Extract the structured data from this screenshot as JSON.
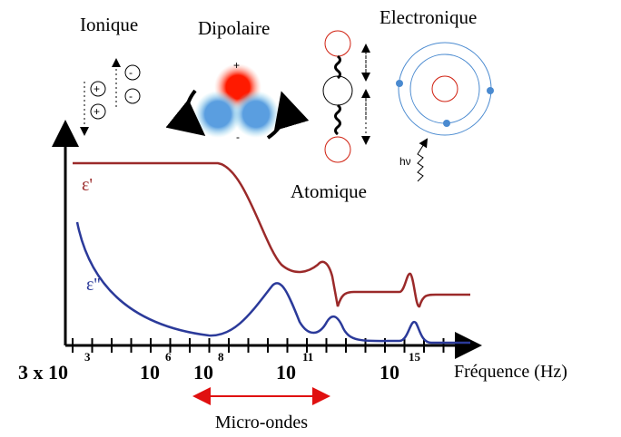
{
  "mechanisms": {
    "ionic": "Ionique",
    "dipolar": "Dipolaire",
    "electronic": "Electronique",
    "atomic": "Atomique"
  },
  "icons": {
    "plus": "+",
    "minus": "-",
    "photon": "hν"
  },
  "curves": {
    "real": "ε'",
    "imaginary": "ε''"
  },
  "axis": {
    "ticks": [
      {
        "base": "3 x 10",
        "exponent": "3"
      },
      {
        "base": "10",
        "exponent": "6"
      },
      {
        "base": "10",
        "exponent": "8"
      },
      {
        "base": "10",
        "exponent": "11"
      },
      {
        "base": "10",
        "exponent": "15"
      }
    ],
    "label": "Fréquence (Hz)"
  },
  "band": {
    "label": "Micro-ondes"
  }
}
